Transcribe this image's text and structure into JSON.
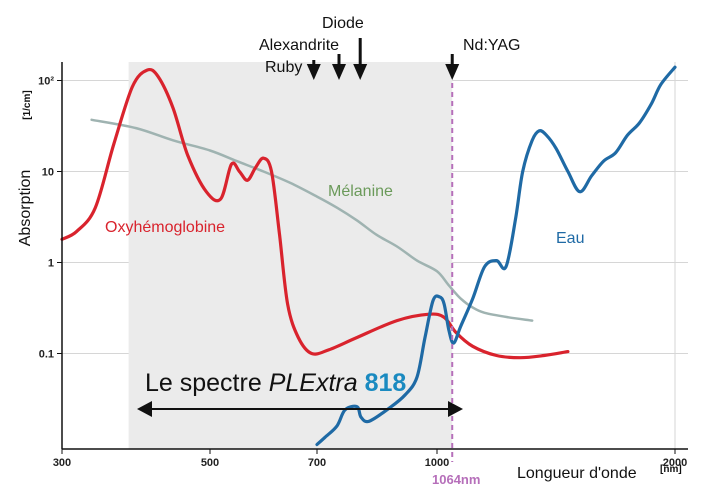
{
  "chart_data": {
    "type": "line",
    "title": "",
    "xlabel": "Longueur d'onde",
    "xunit": "[nm]",
    "ylabel": "Absorption",
    "yunit": "[1/cm]",
    "yscale": "log",
    "xlim": [
      300,
      2000
    ],
    "ylim": [
      0.01,
      150
    ],
    "x_ticks": [
      300,
      500,
      700,
      1000,
      2000
    ],
    "x_tick_labels": [
      "300",
      "500",
      "700",
      "1000",
      "2000"
    ],
    "y_ticks": [
      0.1,
      1,
      10,
      100
    ],
    "y_tick_labels": [
      "0.1",
      "1",
      "10",
      "10²"
    ],
    "grid": true,
    "shaded_band": {
      "from": 390,
      "to": 1064,
      "color": "#ebebeb"
    },
    "spectrum_label": {
      "prefix": "Le spectre ",
      "brand": "PLExtra",
      "model": "818"
    },
    "marker_1064": {
      "x": 1064,
      "label": "1064nm",
      "color": "#b66fba"
    },
    "lasers": [
      {
        "name": "Alexandrite",
        "x": 755
      },
      {
        "name": "Ruby",
        "x": 694
      },
      {
        "name": "Diode",
        "x": 808
      },
      {
        "name": "Nd:YAG",
        "x": 1064
      }
    ],
    "laser_labels": {
      "alexandrite": "Alexandrite",
      "ruby": "Ruby",
      "diode": "Diode",
      "ndyag": "Nd:YAG"
    },
    "series": [
      {
        "name": "Oxyhémoglobine",
        "color": "#d9232d",
        "points": [
          [
            300,
            1.8
          ],
          [
            320,
            2.2
          ],
          [
            345,
            4
          ],
          [
            370,
            20
          ],
          [
            395,
            85
          ],
          [
            415,
            130
          ],
          [
            430,
            110
          ],
          [
            450,
            50
          ],
          [
            470,
            15
          ],
          [
            495,
            6
          ],
          [
            520,
            5
          ],
          [
            540,
            12
          ],
          [
            555,
            10
          ],
          [
            570,
            8
          ],
          [
            585,
            11
          ],
          [
            600,
            14
          ],
          [
            615,
            10
          ],
          [
            630,
            2
          ],
          [
            645,
            0.35
          ],
          [
            665,
            0.15
          ],
          [
            690,
            0.1
          ],
          [
            730,
            0.11
          ],
          [
            800,
            0.15
          ],
          [
            900,
            0.23
          ],
          [
            980,
            0.27
          ],
          [
            1030,
            0.25
          ],
          [
            1080,
            0.17
          ],
          [
            1150,
            0.12
          ],
          [
            1250,
            0.095
          ],
          [
            1350,
            0.09
          ],
          [
            1450,
            0.095
          ],
          [
            1550,
            0.105
          ]
        ]
      },
      {
        "name": "Mélanine",
        "color": "#9fb3b1",
        "points": [
          [
            340,
            37
          ],
          [
            400,
            30
          ],
          [
            450,
            22
          ],
          [
            500,
            17
          ],
          [
            550,
            13
          ],
          [
            600,
            10
          ],
          [
            650,
            7.5
          ],
          [
            700,
            5.3
          ],
          [
            750,
            4
          ],
          [
            800,
            2.9
          ],
          [
            850,
            2
          ],
          [
            900,
            1.5
          ],
          [
            950,
            1.05
          ],
          [
            1000,
            0.8
          ],
          [
            1050,
            0.56
          ],
          [
            1100,
            0.4
          ],
          [
            1150,
            0.32
          ],
          [
            1200,
            0.28
          ],
          [
            1300,
            0.25
          ],
          [
            1400,
            0.23
          ]
        ]
      },
      {
        "name": "Eau",
        "color": "#1f6aa5",
        "points": [
          [
            700,
            0.01
          ],
          [
            720,
            0.012
          ],
          [
            750,
            0.016
          ],
          [
            770,
            0.024
          ],
          [
            800,
            0.026
          ],
          [
            810,
            0.02
          ],
          [
            830,
            0.018
          ],
          [
            880,
            0.025
          ],
          [
            920,
            0.035
          ],
          [
            950,
            0.055
          ],
          [
            970,
            0.15
          ],
          [
            990,
            0.38
          ],
          [
            1010,
            0.42
          ],
          [
            1030,
            0.35
          ],
          [
            1050,
            0.18
          ],
          [
            1070,
            0.13
          ],
          [
            1100,
            0.2
          ],
          [
            1150,
            0.4
          ],
          [
            1200,
            0.9
          ],
          [
            1250,
            1.05
          ],
          [
            1290,
            0.9
          ],
          [
            1330,
            3
          ],
          [
            1360,
            10
          ],
          [
            1400,
            22
          ],
          [
            1430,
            28
          ],
          [
            1460,
            25
          ],
          [
            1500,
            18
          ],
          [
            1550,
            10
          ],
          [
            1600,
            6
          ],
          [
            1650,
            9
          ],
          [
            1700,
            13
          ],
          [
            1750,
            16
          ],
          [
            1800,
            25
          ],
          [
            1850,
            34
          ],
          [
            1900,
            55
          ],
          [
            1940,
            90
          ],
          [
            2000,
            140
          ]
        ]
      }
    ],
    "series_labels": {
      "oxy": "Oxyhémoglobine",
      "melanine": "Mélanine",
      "eau": "Eau"
    }
  }
}
